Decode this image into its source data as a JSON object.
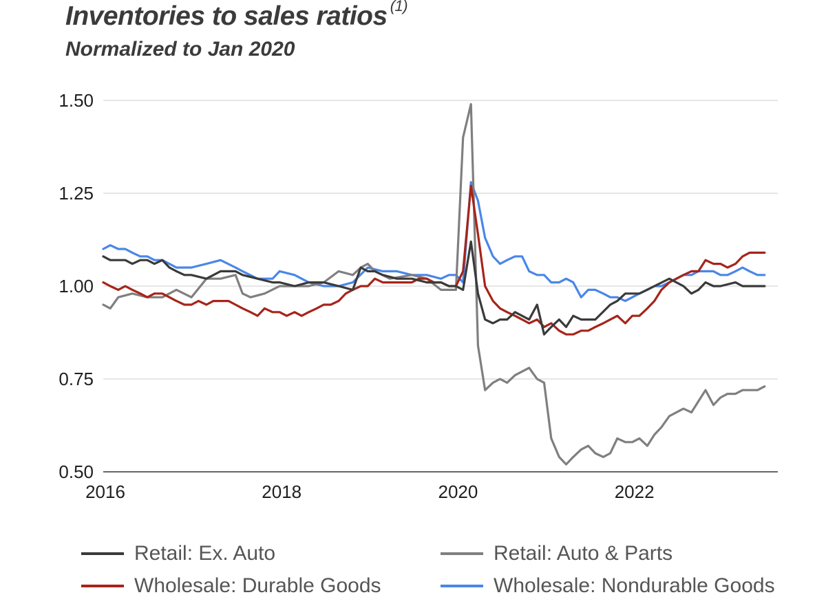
{
  "page": {
    "title": "Inventories to sales ratios",
    "title_note": "(1)",
    "subtitle": "Normalized to Jan 2020"
  },
  "chart_data": {
    "type": "line",
    "title": "Inventories to sales ratios (1)",
    "subtitle": "Normalized to Jan 2020",
    "xlabel": "",
    "ylabel": "",
    "xlim": [
      2016.0,
      2023.65
    ],
    "ylim": [
      0.5,
      1.5
    ],
    "x_ticks": [
      "2016",
      "2018",
      "2020",
      "2022"
    ],
    "x_tick_values": [
      2016,
      2018,
      2020,
      2022
    ],
    "y_ticks": [
      "0.50",
      "0.75",
      "1.00",
      "1.25",
      "1.50"
    ],
    "y_tick_values": [
      0.5,
      0.75,
      1.0,
      1.25,
      1.5
    ],
    "grid": "horizontal",
    "legend_position": "bottom",
    "series": [
      {
        "name": "Retail: Ex. Auto",
        "color": "#3a3a3a",
        "x": [
          2016.0,
          2016.08,
          2016.17,
          2016.25,
          2016.33,
          2016.42,
          2016.5,
          2016.58,
          2016.67,
          2016.75,
          2016.83,
          2016.92,
          2017.0,
          2017.17,
          2017.33,
          2017.5,
          2017.58,
          2017.75,
          2017.92,
          2018.0,
          2018.17,
          2018.33,
          2018.5,
          2018.67,
          2018.83,
          2018.92,
          2019.0,
          2019.08,
          2019.17,
          2019.33,
          2019.5,
          2019.67,
          2019.83,
          2019.92,
          2020.0,
          2020.08,
          2020.17,
          2020.25,
          2020.33,
          2020.42,
          2020.5,
          2020.58,
          2020.67,
          2020.75,
          2020.83,
          2020.92,
          2021.0,
          2021.08,
          2021.17,
          2021.25,
          2021.33,
          2021.42,
          2021.5,
          2021.58,
          2021.75,
          2021.83,
          2021.92,
          2022.0,
          2022.08,
          2022.25,
          2022.42,
          2022.58,
          2022.67,
          2022.75,
          2022.83,
          2022.92,
          2023.0,
          2023.17,
          2023.25,
          2023.33,
          2023.5
        ],
        "y": [
          1.08,
          1.07,
          1.07,
          1.07,
          1.06,
          1.07,
          1.07,
          1.06,
          1.07,
          1.05,
          1.04,
          1.03,
          1.03,
          1.02,
          1.04,
          1.04,
          1.03,
          1.02,
          1.01,
          1.01,
          1.0,
          1.01,
          1.01,
          1.0,
          0.99,
          1.05,
          1.04,
          1.04,
          1.03,
          1.02,
          1.02,
          1.01,
          1.01,
          1.0,
          1.0,
          0.99,
          1.12,
          0.98,
          0.91,
          0.9,
          0.91,
          0.91,
          0.93,
          0.92,
          0.91,
          0.95,
          0.87,
          0.89,
          0.91,
          0.89,
          0.92,
          0.91,
          0.91,
          0.91,
          0.95,
          0.96,
          0.98,
          0.98,
          0.98,
          1.0,
          1.02,
          1.0,
          0.98,
          0.99,
          1.01,
          1.0,
          1.0,
          1.01,
          1.0,
          1.0,
          1.0
        ]
      },
      {
        "name": "Retail: Auto & Parts",
        "color": "#7f7f7f",
        "x": [
          2016.0,
          2016.08,
          2016.17,
          2016.33,
          2016.5,
          2016.67,
          2016.83,
          2017.0,
          2017.17,
          2017.33,
          2017.5,
          2017.58,
          2017.67,
          2017.83,
          2018.0,
          2018.17,
          2018.33,
          2018.5,
          2018.67,
          2018.83,
          2018.92,
          2019.0,
          2019.08,
          2019.25,
          2019.5,
          2019.67,
          2019.83,
          2020.0,
          2020.08,
          2020.17,
          2020.25,
          2020.33,
          2020.42,
          2020.5,
          2020.58,
          2020.67,
          2020.83,
          2020.92,
          2021.0,
          2021.08,
          2021.17,
          2021.25,
          2021.33,
          2021.42,
          2021.5,
          2021.58,
          2021.67,
          2021.75,
          2021.83,
          2021.92,
          2022.0,
          2022.08,
          2022.17,
          2022.25,
          2022.33,
          2022.42,
          2022.5,
          2022.58,
          2022.67,
          2022.75,
          2022.83,
          2022.92,
          2023.0,
          2023.08,
          2023.17,
          2023.25,
          2023.33,
          2023.42,
          2023.5
        ],
        "y": [
          0.95,
          0.94,
          0.97,
          0.98,
          0.97,
          0.97,
          0.99,
          0.97,
          1.02,
          1.02,
          1.03,
          0.98,
          0.97,
          0.98,
          1.0,
          1.0,
          1.0,
          1.01,
          1.04,
          1.03,
          1.05,
          1.06,
          1.04,
          1.02,
          1.03,
          1.02,
          0.99,
          0.99,
          1.4,
          1.49,
          0.84,
          0.72,
          0.74,
          0.75,
          0.74,
          0.76,
          0.78,
          0.75,
          0.74,
          0.59,
          0.54,
          0.52,
          0.54,
          0.56,
          0.57,
          0.55,
          0.54,
          0.55,
          0.59,
          0.58,
          0.58,
          0.59,
          0.57,
          0.6,
          0.62,
          0.65,
          0.66,
          0.67,
          0.66,
          0.69,
          0.72,
          0.68,
          0.7,
          0.71,
          0.71,
          0.72,
          0.72,
          0.72,
          0.73
        ]
      },
      {
        "name": "Wholesale: Durable Goods",
        "color": "#a6241a",
        "x": [
          2016.0,
          2016.08,
          2016.17,
          2016.25,
          2016.33,
          2016.42,
          2016.5,
          2016.58,
          2016.67,
          2016.75,
          2016.83,
          2016.92,
          2017.0,
          2017.08,
          2017.17,
          2017.25,
          2017.33,
          2017.42,
          2017.5,
          2017.58,
          2017.67,
          2017.75,
          2017.83,
          2017.92,
          2018.0,
          2018.08,
          2018.17,
          2018.25,
          2018.33,
          2018.42,
          2018.5,
          2018.58,
          2018.67,
          2018.75,
          2018.83,
          2018.92,
          2019.0,
          2019.08,
          2019.17,
          2019.25,
          2019.33,
          2019.42,
          2019.5,
          2019.58,
          2019.67,
          2019.75,
          2019.83,
          2019.92,
          2020.0,
          2020.08,
          2020.17,
          2020.25,
          2020.33,
          2020.42,
          2020.5,
          2020.58,
          2020.67,
          2020.75,
          2020.83,
          2020.92,
          2021.0,
          2021.08,
          2021.17,
          2021.25,
          2021.33,
          2021.42,
          2021.5,
          2021.58,
          2021.67,
          2021.75,
          2021.83,
          2021.92,
          2022.0,
          2022.08,
          2022.17,
          2022.25,
          2022.33,
          2022.42,
          2022.5,
          2022.58,
          2022.67,
          2022.75,
          2022.83,
          2022.92,
          2023.0,
          2023.08,
          2023.17,
          2023.25,
          2023.33,
          2023.42,
          2023.5
        ],
        "y": [
          1.01,
          1.0,
          0.99,
          1.0,
          0.99,
          0.98,
          0.97,
          0.98,
          0.98,
          0.97,
          0.96,
          0.95,
          0.95,
          0.96,
          0.95,
          0.96,
          0.96,
          0.96,
          0.95,
          0.94,
          0.93,
          0.92,
          0.94,
          0.93,
          0.93,
          0.92,
          0.93,
          0.92,
          0.93,
          0.94,
          0.95,
          0.95,
          0.96,
          0.98,
          0.99,
          1.0,
          1.0,
          1.02,
          1.01,
          1.01,
          1.01,
          1.01,
          1.01,
          1.02,
          1.02,
          1.01,
          1.01,
          1.0,
          1.0,
          1.04,
          1.27,
          1.14,
          1.0,
          0.96,
          0.94,
          0.93,
          0.92,
          0.91,
          0.9,
          0.91,
          0.89,
          0.9,
          0.88,
          0.87,
          0.87,
          0.88,
          0.88,
          0.89,
          0.9,
          0.91,
          0.92,
          0.9,
          0.92,
          0.92,
          0.94,
          0.96,
          0.99,
          1.01,
          1.02,
          1.03,
          1.04,
          1.04,
          1.07,
          1.06,
          1.06,
          1.05,
          1.06,
          1.08,
          1.09,
          1.09,
          1.09
        ]
      },
      {
        "name": "Wholesale: Nondurable Goods",
        "color": "#4a86e8",
        "x": [
          2016.0,
          2016.08,
          2016.17,
          2016.25,
          2016.33,
          2016.42,
          2016.5,
          2016.58,
          2016.67,
          2016.75,
          2016.83,
          2016.92,
          2017.0,
          2017.17,
          2017.33,
          2017.5,
          2017.58,
          2017.75,
          2017.92,
          2018.0,
          2018.17,
          2018.33,
          2018.5,
          2018.67,
          2018.83,
          2019.0,
          2019.17,
          2019.33,
          2019.5,
          2019.67,
          2019.83,
          2019.92,
          2020.0,
          2020.08,
          2020.17,
          2020.25,
          2020.33,
          2020.42,
          2020.5,
          2020.58,
          2020.67,
          2020.75,
          2020.83,
          2020.92,
          2021.0,
          2021.08,
          2021.17,
          2021.25,
          2021.33,
          2021.42,
          2021.5,
          2021.58,
          2021.67,
          2021.75,
          2021.83,
          2021.92,
          2022.0,
          2022.08,
          2022.17,
          2022.25,
          2022.33,
          2022.42,
          2022.5,
          2022.58,
          2022.67,
          2022.75,
          2022.83,
          2022.92,
          2023.0,
          2023.08,
          2023.17,
          2023.25,
          2023.33,
          2023.42,
          2023.5
        ],
        "y": [
          1.1,
          1.11,
          1.1,
          1.1,
          1.09,
          1.08,
          1.08,
          1.07,
          1.07,
          1.06,
          1.05,
          1.05,
          1.05,
          1.06,
          1.07,
          1.05,
          1.04,
          1.02,
          1.02,
          1.04,
          1.03,
          1.01,
          1.0,
          1.0,
          1.01,
          1.05,
          1.04,
          1.04,
          1.03,
          1.03,
          1.02,
          1.03,
          1.03,
          1.01,
          1.28,
          1.23,
          1.13,
          1.08,
          1.06,
          1.07,
          1.08,
          1.08,
          1.04,
          1.03,
          1.03,
          1.01,
          1.01,
          1.02,
          1.01,
          0.97,
          0.99,
          0.99,
          0.98,
          0.97,
          0.97,
          0.96,
          0.97,
          0.98,
          0.99,
          1.0,
          1.0,
          1.01,
          1.02,
          1.03,
          1.03,
          1.04,
          1.04,
          1.04,
          1.03,
          1.03,
          1.04,
          1.05,
          1.04,
          1.03,
          1.03
        ]
      }
    ]
  }
}
